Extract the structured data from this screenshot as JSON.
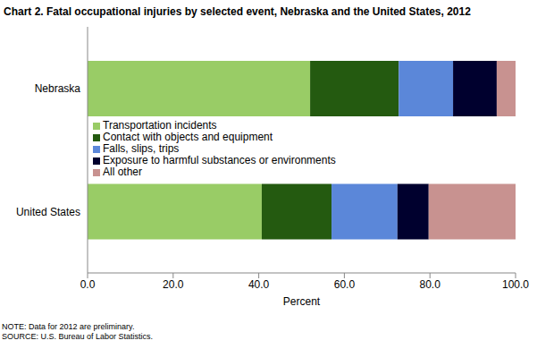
{
  "chart_data": {
    "type": "bar",
    "title": "Chart 2. Fatal occupational injuries by selected event, Nebraska and the United States, 2012",
    "orientation": "horizontal",
    "stacked": true,
    "legend": "center",
    "categories": [
      "Nebraska",
      "United States"
    ],
    "series": [
      {
        "name": "Transportation incidents",
        "color": "#99cc66",
        "values": [
          52.0,
          40.7
        ]
      },
      {
        "name": "Contact with objects and equipment",
        "color": "#245a10",
        "values": [
          20.7,
          16.3
        ]
      },
      {
        "name": "Falls, slips, trips",
        "color": "#5b87d9",
        "values": [
          12.7,
          15.4
        ]
      },
      {
        "name": "Exposure to harmful substances or environments",
        "color": "#00002e",
        "values": [
          10.2,
          7.3
        ]
      },
      {
        "name": "All other",
        "color": "#c89290",
        "values": [
          4.4,
          20.3
        ]
      }
    ],
    "xlabel": "Percent",
    "xlim": [
      0,
      100
    ],
    "xticks": [
      {
        "value": 0,
        "label": "0.0"
      },
      {
        "value": 20,
        "label": "20.0"
      },
      {
        "value": 40,
        "label": "40.0"
      },
      {
        "value": 60,
        "label": "60.0"
      },
      {
        "value": 80,
        "label": "80.0"
      },
      {
        "value": 100,
        "label": "100.0"
      }
    ],
    "grid": false,
    "notes": [
      "NOTE: Data for 2012 are preliminary.",
      "SOURCE: U.S. Bureau of Labor Statistics."
    ]
  }
}
